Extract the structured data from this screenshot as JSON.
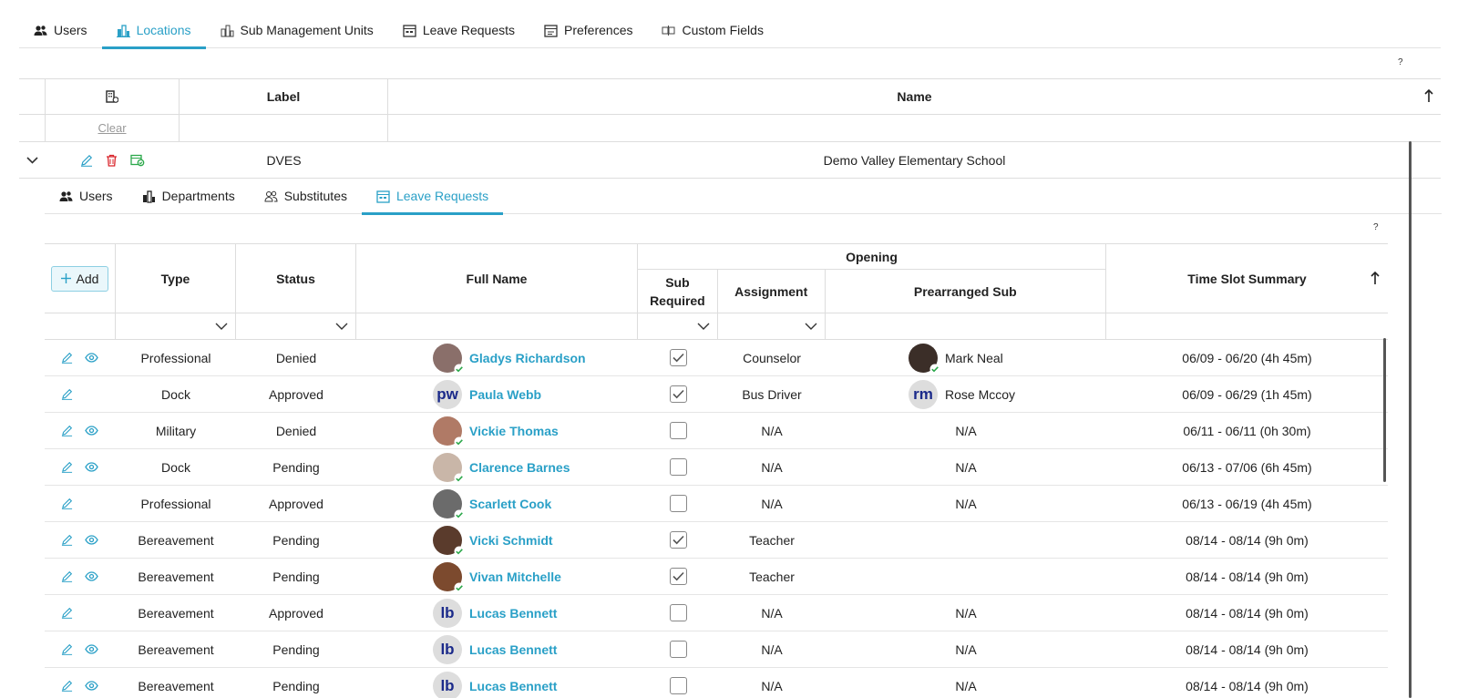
{
  "top_tabs": [
    {
      "label": "Users",
      "icon": "users-icon"
    },
    {
      "label": "Locations",
      "icon": "locations-icon",
      "active": true
    },
    {
      "label": "Sub Management Units",
      "icon": "units-icon"
    },
    {
      "label": "Leave Requests",
      "icon": "calendar-icon"
    },
    {
      "label": "Preferences",
      "icon": "preferences-icon"
    },
    {
      "label": "Custom Fields",
      "icon": "custom-fields-icon"
    }
  ],
  "help_mark": "?",
  "outer_grid": {
    "col_label": "Label",
    "col_name": "Name",
    "clear_label": "Clear",
    "row": {
      "label": "DVES",
      "name": "Demo Valley Elementary School"
    }
  },
  "sub_tabs": [
    {
      "label": "Users",
      "icon": "users-icon"
    },
    {
      "label": "Departments",
      "icon": "departments-icon"
    },
    {
      "label": "Substitutes",
      "icon": "substitutes-icon"
    },
    {
      "label": "Leave Requests",
      "icon": "calendar-icon",
      "active": true
    }
  ],
  "inner_grid": {
    "add_label": "Add",
    "headers": {
      "type": "Type",
      "status": "Status",
      "full_name": "Full Name",
      "opening": "Opening",
      "sub_required": "Sub Required",
      "assignment": "Assignment",
      "prearranged_sub": "Prearranged Sub",
      "time_slot_summary": "Time Slot Summary"
    },
    "rows": [
      {
        "view": true,
        "type": "Professional",
        "status": "Denied",
        "name": "Gladys Richardson",
        "avatar": "photo",
        "sub_required": true,
        "assignment": "Counselor",
        "prearranged": "Mark Neal",
        "pre_avatar": "photo",
        "summary": "06/09 - 06/20 (4h 45m)"
      },
      {
        "view": false,
        "type": "Dock",
        "status": "Approved",
        "name": "Paula Webb",
        "avatar": "pw",
        "sub_required": true,
        "assignment": "Bus Driver",
        "prearranged": "Rose Mccoy",
        "pre_avatar": "rm",
        "summary": "06/09 - 06/29 (1h 45m)"
      },
      {
        "view": true,
        "type": "Military",
        "status": "Denied",
        "name": "Vickie Thomas",
        "avatar": "photo",
        "sub_required": false,
        "assignment": "N/A",
        "prearranged": "N/A",
        "summary": "06/11 - 06/11 (0h 30m)"
      },
      {
        "view": true,
        "type": "Dock",
        "status": "Pending",
        "name": "Clarence Barnes",
        "avatar": "photo",
        "sub_required": false,
        "assignment": "N/A",
        "prearranged": "N/A",
        "summary": "06/13 - 07/06 (6h 45m)"
      },
      {
        "view": false,
        "type": "Professional",
        "status": "Approved",
        "name": "Scarlett Cook",
        "avatar": "photo",
        "sub_required": false,
        "assignment": "N/A",
        "prearranged": "N/A",
        "summary": "06/13 - 06/19 (4h 45m)"
      },
      {
        "view": true,
        "type": "Bereavement",
        "status": "Pending",
        "name": "Vicki Schmidt",
        "avatar": "photo",
        "sub_required": true,
        "assignment": "Teacher",
        "prearranged": "",
        "summary": "08/14 - 08/14 (9h 0m)"
      },
      {
        "view": true,
        "type": "Bereavement",
        "status": "Pending",
        "name": "Vivan Mitchelle",
        "avatar": "photo",
        "sub_required": true,
        "assignment": "Teacher",
        "prearranged": "",
        "summary": "08/14 - 08/14 (9h 0m)"
      },
      {
        "view": false,
        "type": "Bereavement",
        "status": "Approved",
        "name": "Lucas Bennett",
        "avatar": "lb",
        "sub_required": false,
        "assignment": "N/A",
        "prearranged": "N/A",
        "summary": "08/14 - 08/14 (9h 0m)"
      },
      {
        "view": true,
        "type": "Bereavement",
        "status": "Pending",
        "name": "Lucas Bennett",
        "avatar": "lb",
        "sub_required": false,
        "assignment": "N/A",
        "prearranged": "N/A",
        "summary": "08/14 - 08/14 (9h 0m)"
      },
      {
        "view": true,
        "type": "Bereavement",
        "status": "Pending",
        "name": "Lucas Bennett",
        "avatar": "lb",
        "sub_required": false,
        "assignment": "N/A",
        "prearranged": "N/A",
        "summary": "08/14 - 08/14 (9h 0m)"
      }
    ]
  },
  "colors": {
    "accent": "#2aa0c7",
    "delete": "#d9252b",
    "link_name": "#2aa0c7",
    "check": "#2ba84a"
  }
}
